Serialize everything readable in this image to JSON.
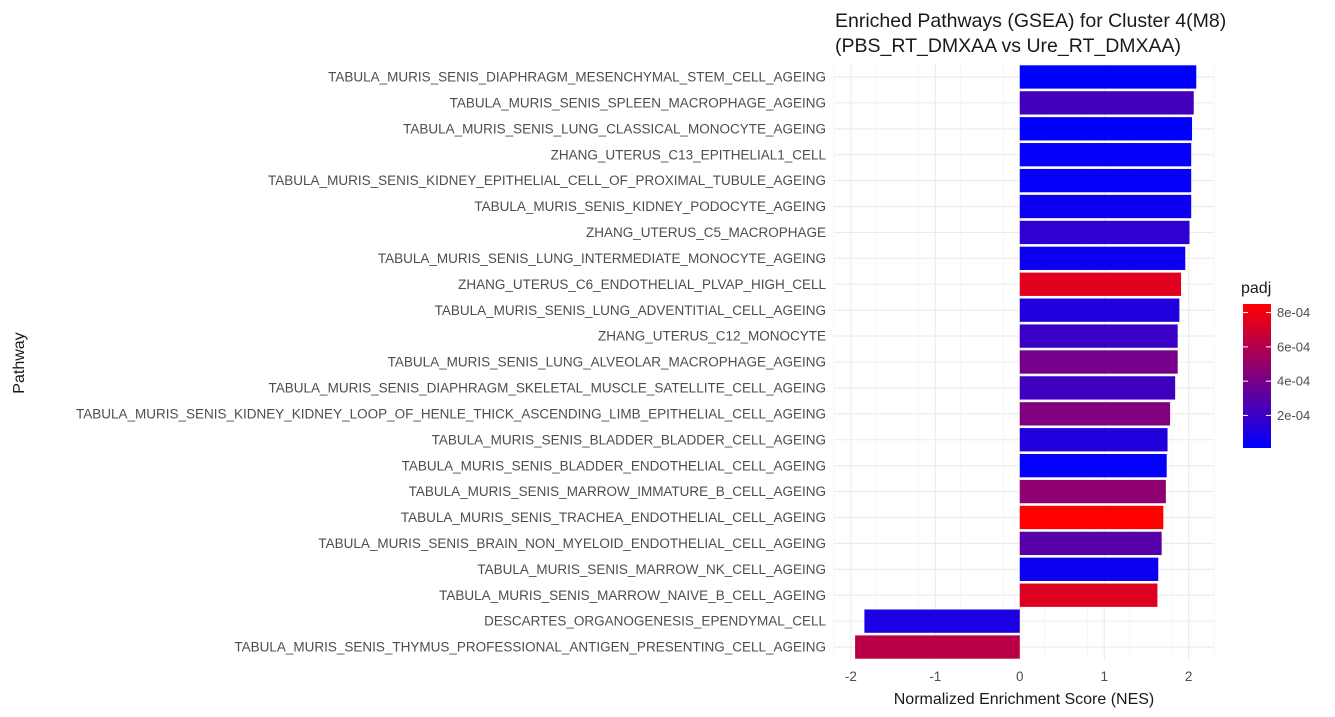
{
  "chart_data": {
    "type": "bar",
    "orientation": "horizontal",
    "title": "Enriched Pathways (GSEA) for Cluster 4(M8)",
    "subtitle": "(PBS_RT_DMXAA vs Ure_RT_DMXAA)",
    "xlabel": "Normalized Enrichment Score (NES)",
    "ylabel": "Pathway",
    "xlim": [
      -2.2,
      2.3
    ],
    "xticks": [
      -2,
      -1,
      0,
      1,
      2
    ],
    "grid": true,
    "legend": {
      "title": "padj",
      "position": "right",
      "min": 1e-05,
      "max": 0.00085,
      "ticks": [
        0.0002,
        0.0004,
        0.0006,
        0.0008
      ],
      "tick_labels": [
        "2e-04",
        "4e-04",
        "6e-04",
        "8e-04"
      ],
      "low_color": "#0000ff",
      "high_color": "#ff0000"
    },
    "bars": [
      {
        "label": "TABULA_MURIS_SENIS_DIAPHRAGM_MESENCHYMAL_STEM_CELL_AGEING",
        "nes": 2.09,
        "padj": 1e-05
      },
      {
        "label": "TABULA_MURIS_SENIS_SPLEEN_MACROPHAGE_AGEING",
        "nes": 2.06,
        "padj": 0.00023
      },
      {
        "label": "TABULA_MURIS_SENIS_LUNG_CLASSICAL_MONOCYTE_AGEING",
        "nes": 2.04,
        "padj": 1e-05
      },
      {
        "label": "ZHANG_UTERUS_C13_EPITHELIAL1_CELL",
        "nes": 2.03,
        "padj": 3e-05
      },
      {
        "label": "TABULA_MURIS_SENIS_KIDNEY_EPITHELIAL_CELL_OF_PROXIMAL_TUBULE_AGEING",
        "nes": 2.03,
        "padj": 3e-05
      },
      {
        "label": "TABULA_MURIS_SENIS_KIDNEY_PODOCYTE_AGEING",
        "nes": 2.03,
        "padj": 5e-05
      },
      {
        "label": "ZHANG_UTERUS_C5_MACROPHAGE",
        "nes": 2.01,
        "padj": 0.00016
      },
      {
        "label": "TABULA_MURIS_SENIS_LUNG_INTERMEDIATE_MONOCYTE_AGEING",
        "nes": 1.96,
        "padj": 5e-05
      },
      {
        "label": "ZHANG_UTERUS_C6_ENDOTHELIAL_PLVAP_HIGH_CELL",
        "nes": 1.91,
        "padj": 0.00075
      },
      {
        "label": "TABULA_MURIS_SENIS_LUNG_ADVENTITIAL_CELL_AGEING",
        "nes": 1.89,
        "padj": 0.00012
      },
      {
        "label": "ZHANG_UTERUS_C12_MONOCYTE",
        "nes": 1.87,
        "padj": 0.0002
      },
      {
        "label": "TABULA_MURIS_SENIS_LUNG_ALVEOLAR_MACROPHAGE_AGEING",
        "nes": 1.87,
        "padj": 0.0004
      },
      {
        "label": "TABULA_MURIS_SENIS_DIAPHRAGM_SKELETAL_MUSCLE_SATELLITE_CELL_AGEING",
        "nes": 1.84,
        "padj": 0.00022
      },
      {
        "label": "TABULA_MURIS_SENIS_KIDNEY_KIDNEY_LOOP_OF_HENLE_THICK_ASCENDING_LIMB_EPITHELIAL_CELL_AGEING",
        "nes": 1.78,
        "padj": 0.00043
      },
      {
        "label": "TABULA_MURIS_SENIS_BLADDER_BLADDER_CELL_AGEING",
        "nes": 1.75,
        "padj": 0.00012
      },
      {
        "label": "TABULA_MURIS_SENIS_BLADDER_ENDOTHELIAL_CELL_AGEING",
        "nes": 1.74,
        "padj": 2e-05
      },
      {
        "label": "TABULA_MURIS_SENIS_MARROW_IMMATURE_B_CELL_AGEING",
        "nes": 1.73,
        "padj": 0.00048
      },
      {
        "label": "TABULA_MURIS_SENIS_TRACHEA_ENDOTHELIAL_CELL_AGEING",
        "nes": 1.7,
        "padj": 0.00085
      },
      {
        "label": "TABULA_MURIS_SENIS_BRAIN_NON_MYELOID_ENDOTHELIAL_CELL_AGEING",
        "nes": 1.68,
        "padj": 0.0003
      },
      {
        "label": "TABULA_MURIS_SENIS_MARROW_NK_CELL_AGEING",
        "nes": 1.64,
        "padj": 5e-05
      },
      {
        "label": "TABULA_MURIS_SENIS_MARROW_NAIVE_B_CELL_AGEING",
        "nes": 1.63,
        "padj": 0.00074
      },
      {
        "label": "DESCARTES_ORGANOGENESIS_EPENDYMAL_CELL",
        "nes": -1.84,
        "padj": 0.0001
      },
      {
        "label": "TABULA_MURIS_SENIS_THYMUS_PROFESSIONAL_ANTIGEN_PRESENTING_CELL_AGEING",
        "nes": -1.95,
        "padj": 0.00062
      }
    ]
  }
}
